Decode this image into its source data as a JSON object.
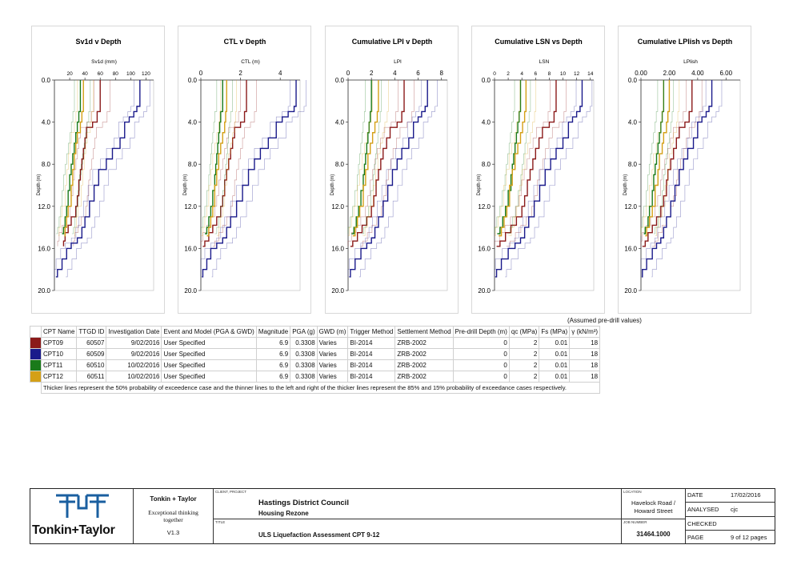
{
  "charts": [
    {
      "title": "Sv1d v Depth",
      "xlabel": "Sv1d (mm)",
      "ylabel": "Depth (m)",
      "xticks": [
        "20",
        "40",
        "60",
        "80",
        "100",
        "120"
      ],
      "yticks": [
        "0.0",
        "4.0",
        "8.0",
        "12.0",
        "16.0",
        "20.0"
      ]
    },
    {
      "title": "CTL v Depth",
      "xlabel": "CTL (m)",
      "ylabel": "Depth (m)",
      "xticks": [
        "0",
        "2",
        "4"
      ],
      "yticks": [
        "0.0",
        "4.0",
        "8.0",
        "12.0",
        "16.0",
        "20.0"
      ]
    },
    {
      "title": "Cumulative LPI v Depth",
      "xlabel": "LPI",
      "ylabel": "Depth (m)",
      "xticks": [
        "0",
        "2",
        "4",
        "6",
        "8"
      ],
      "yticks": [
        "0.0",
        "4.0",
        "8.0",
        "12.0",
        "16.0",
        "20.0"
      ]
    },
    {
      "title": "Cumulative LSN vs Depth",
      "xlabel": "LSN",
      "ylabel": "Depth (m)",
      "xticks": [
        "0",
        "2",
        "4",
        "6",
        "8",
        "10",
        "12",
        "14"
      ],
      "yticks": [
        "0.0",
        "4.0",
        "8.0",
        "12.0",
        "16.0",
        "20.0"
      ]
    },
    {
      "title": "Cumulative LPlish vs Depth",
      "xlabel": "LPlish",
      "ylabel": "Depth (m)",
      "xticks": [
        "0.00",
        "2.00",
        "4.00",
        "6.00"
      ],
      "yticks": [
        "0.0",
        "4.0",
        "8.0",
        "12.0",
        "16.0",
        "20.0"
      ]
    }
  ],
  "chart_data": [
    {
      "type": "line",
      "title": "Sv1d v Depth",
      "xlabel": "Sv1d (mm)",
      "ylabel": "Depth (m)",
      "xlim": [
        0,
        130
      ],
      "ylim": [
        0,
        20
      ],
      "series": [
        {
          "name": "CPT09",
          "color": "#8b1a1a",
          "x": [
            60,
            60,
            56,
            50,
            42,
            40,
            38,
            36,
            34,
            32,
            30,
            28,
            22,
            18,
            14,
            12,
            12
          ],
          "y": [
            0,
            1.5,
            3.0,
            4.0,
            4.5,
            5.5,
            6.5,
            7.5,
            8.5,
            9.5,
            11.0,
            12.0,
            13.0,
            13.8,
            14.5,
            15.3,
            15.8
          ]
        },
        {
          "name": "CPT10",
          "color": "#1a1a8b",
          "x": [
            112,
            112,
            108,
            104,
            98,
            92,
            86,
            76,
            68,
            58,
            52,
            46,
            40,
            36,
            30,
            22,
            16,
            10,
            4,
            2
          ],
          "y": [
            0,
            1.5,
            2.5,
            3.0,
            3.5,
            4.0,
            5.5,
            6.5,
            7.5,
            8.5,
            10.0,
            11.5,
            13.0,
            14.0,
            15.0,
            15.5,
            16.0,
            17.0,
            18.0,
            18.7
          ]
        },
        {
          "name": "CPT11",
          "color": "#1a7a1a",
          "x": [
            34,
            34,
            32,
            30,
            28,
            26,
            24,
            22,
            20,
            18,
            16,
            14,
            12,
            10
          ],
          "y": [
            0,
            1.5,
            3.0,
            4.0,
            5.0,
            6.0,
            7.0,
            8.0,
            9.0,
            10.5,
            12.0,
            13.0,
            14.0,
            14.6
          ]
        },
        {
          "name": "CPT12",
          "color": "#d4a017",
          "x": [
            38,
            38,
            36,
            34,
            30,
            28,
            26,
            24,
            22,
            18,
            16,
            14,
            13
          ],
          "y": [
            0,
            1.5,
            3.0,
            4.0,
            5.0,
            6.0,
            7.0,
            8.5,
            10.0,
            12.0,
            13.0,
            14.0,
            14.8
          ]
        }
      ]
    },
    {
      "type": "line",
      "title": "CTL v Depth",
      "xlabel": "CTL (m)",
      "ylabel": "Depth (m)",
      "xlim": [
        0,
        5
      ],
      "ylim": [
        0,
        20
      ],
      "series": [
        {
          "name": "CPT09",
          "color": "#8b1a1a",
          "x": [
            2.3,
            2.3,
            2.2,
            2.0,
            1.7,
            1.6,
            1.5,
            1.4,
            1.3,
            1.2,
            1.1,
            1.0,
            0.8,
            0.6,
            0.4,
            0.2,
            0.1
          ],
          "y": [
            0,
            1.5,
            3.0,
            4.0,
            4.5,
            5.5,
            6.5,
            7.5,
            8.5,
            9.5,
            11.0,
            12.0,
            13.0,
            13.8,
            14.5,
            15.3,
            15.8
          ]
        },
        {
          "name": "CPT10",
          "color": "#1a1a8b",
          "x": [
            4.8,
            4.8,
            4.7,
            4.4,
            4.1,
            3.8,
            3.4,
            3.0,
            2.7,
            2.4,
            2.1,
            1.8,
            1.5,
            1.3,
            1.1,
            0.8,
            0.5,
            0.3,
            0.1,
            0.05
          ],
          "y": [
            0,
            1.5,
            2.5,
            3.0,
            3.5,
            4.0,
            5.5,
            6.5,
            7.5,
            8.5,
            10.0,
            11.5,
            13.0,
            14.0,
            15.0,
            15.5,
            16.0,
            17.0,
            18.0,
            18.7
          ]
        },
        {
          "name": "CPT11",
          "color": "#1a7a1a",
          "x": [
            1.1,
            1.1,
            1.0,
            0.95,
            0.9,
            0.85,
            0.8,
            0.75,
            0.7,
            0.6,
            0.5,
            0.4,
            0.3,
            0.2
          ],
          "y": [
            0,
            1.5,
            3.0,
            4.0,
            5.0,
            6.0,
            7.0,
            8.0,
            9.0,
            10.5,
            12.0,
            13.0,
            14.0,
            14.6
          ]
        },
        {
          "name": "CPT12",
          "color": "#d4a017",
          "x": [
            1.3,
            1.3,
            1.25,
            1.2,
            1.1,
            1.0,
            0.9,
            0.8,
            0.7,
            0.6,
            0.5,
            0.4,
            0.3
          ],
          "y": [
            0,
            1.5,
            3.0,
            4.0,
            5.0,
            6.0,
            7.0,
            8.5,
            10.0,
            12.0,
            13.0,
            14.0,
            14.8
          ]
        }
      ]
    },
    {
      "type": "line",
      "title": "Cumulative LPI v Depth",
      "xlabel": "LPI",
      "ylabel": "Depth (m)",
      "xlim": [
        0,
        8.5
      ],
      "ylim": [
        0,
        20
      ],
      "series": [
        {
          "name": "CPT09",
          "color": "#8b1a1a",
          "x": [
            4.8,
            4.8,
            4.6,
            4.2,
            3.6,
            3.3,
            3.0,
            2.8,
            2.6,
            2.4,
            2.2,
            2.0,
            1.6,
            1.2,
            0.8,
            0.4,
            0.2
          ],
          "y": [
            0,
            1.5,
            3.0,
            4.0,
            4.5,
            5.5,
            6.5,
            7.5,
            8.5,
            9.5,
            11.0,
            12.0,
            13.0,
            13.8,
            14.5,
            15.3,
            15.8
          ]
        },
        {
          "name": "CPT10",
          "color": "#1a1a8b",
          "x": [
            6.8,
            6.8,
            6.6,
            6.3,
            6.0,
            5.6,
            5.2,
            4.6,
            4.2,
            3.8,
            3.4,
            3.0,
            2.6,
            2.3,
            2.0,
            1.6,
            1.1,
            0.6,
            0.2,
            0.1
          ],
          "y": [
            0,
            1.5,
            2.5,
            3.0,
            3.5,
            4.0,
            5.5,
            6.5,
            7.5,
            8.5,
            10.0,
            11.5,
            13.0,
            14.0,
            15.0,
            15.5,
            16.0,
            17.0,
            18.0,
            18.7
          ]
        },
        {
          "name": "CPT11",
          "color": "#1a7a1a",
          "x": [
            2.0,
            2.0,
            1.9,
            1.8,
            1.7,
            1.6,
            1.5,
            1.4,
            1.3,
            1.1,
            0.9,
            0.7,
            0.5,
            0.3
          ],
          "y": [
            0,
            1.5,
            3.0,
            4.0,
            5.0,
            6.0,
            7.0,
            8.0,
            9.0,
            10.5,
            12.0,
            13.0,
            14.0,
            14.6
          ]
        },
        {
          "name": "CPT12",
          "color": "#d4a017",
          "x": [
            2.6,
            2.6,
            2.5,
            2.3,
            2.1,
            1.9,
            1.7,
            1.5,
            1.3,
            1.0,
            0.8,
            0.6,
            0.4
          ],
          "y": [
            0,
            1.5,
            3.0,
            4.0,
            5.0,
            6.0,
            7.0,
            8.5,
            10.0,
            12.0,
            13.0,
            14.0,
            14.8
          ]
        }
      ]
    },
    {
      "type": "line",
      "title": "Cumulative LSN vs Depth",
      "xlabel": "LSN",
      "ylabel": "Depth (m)",
      "xlim": [
        0,
        14.5
      ],
      "ylim": [
        0,
        20
      ],
      "series": [
        {
          "name": "CPT09",
          "color": "#8b1a1a",
          "x": [
            9.0,
            9.0,
            8.7,
            8.0,
            7.0,
            6.5,
            6.0,
            5.6,
            5.2,
            4.8,
            4.4,
            4.0,
            3.2,
            2.4,
            1.6,
            0.8,
            0.3
          ],
          "y": [
            0,
            1.5,
            3.0,
            4.0,
            4.5,
            5.5,
            6.5,
            7.5,
            8.5,
            9.5,
            11.0,
            12.0,
            13.0,
            13.8,
            14.5,
            15.3,
            15.8
          ]
        },
        {
          "name": "CPT10",
          "color": "#1a1a8b",
          "x": [
            12.8,
            12.8,
            12.5,
            12.0,
            11.4,
            10.8,
            10.0,
            9.0,
            8.2,
            7.4,
            6.6,
            5.8,
            5.0,
            4.4,
            3.8,
            3.0,
            2.0,
            1.0,
            0.3,
            0.1
          ],
          "y": [
            0,
            1.5,
            2.5,
            3.0,
            3.5,
            4.0,
            5.5,
            6.5,
            7.5,
            8.5,
            10.0,
            11.5,
            13.0,
            14.0,
            15.0,
            15.5,
            16.0,
            17.0,
            18.0,
            18.7
          ]
        },
        {
          "name": "CPT11",
          "color": "#1a7a1a",
          "x": [
            3.8,
            3.8,
            3.6,
            3.4,
            3.2,
            3.0,
            2.8,
            2.6,
            2.4,
            2.0,
            1.6,
            1.2,
            0.8,
            0.4
          ],
          "y": [
            0,
            1.5,
            3.0,
            4.0,
            5.0,
            6.0,
            7.0,
            8.0,
            9.0,
            10.5,
            12.0,
            13.0,
            14.0,
            14.6
          ]
        },
        {
          "name": "CPT12",
          "color": "#d4a017",
          "x": [
            4.6,
            4.6,
            4.4,
            4.1,
            3.8,
            3.4,
            3.0,
            2.6,
            2.2,
            1.8,
            1.4,
            1.0,
            0.6
          ],
          "y": [
            0,
            1.5,
            3.0,
            4.0,
            5.0,
            6.0,
            7.0,
            8.5,
            10.0,
            12.0,
            13.0,
            14.0,
            14.8
          ]
        }
      ]
    },
    {
      "type": "line",
      "title": "Cumulative LPlish vs Depth",
      "xlabel": "LPlish",
      "ylabel": "Depth (m)",
      "xlim": [
        0,
        7
      ],
      "ylim": [
        0,
        20
      ],
      "series": [
        {
          "name": "CPT09",
          "color": "#8b1a1a",
          "x": [
            3.6,
            3.6,
            3.4,
            3.1,
            2.7,
            2.5,
            2.3,
            2.1,
            1.9,
            1.8,
            1.6,
            1.4,
            1.1,
            0.8,
            0.5,
            0.3,
            0.1
          ],
          "y": [
            0,
            1.5,
            3.0,
            4.0,
            4.5,
            5.5,
            6.5,
            7.5,
            8.5,
            9.5,
            11.0,
            12.0,
            13.0,
            13.8,
            14.5,
            15.3,
            15.8
          ]
        },
        {
          "name": "CPT10",
          "color": "#1a1a8b",
          "x": [
            5.0,
            5.0,
            4.8,
            4.6,
            4.3,
            4.0,
            3.7,
            3.3,
            3.0,
            2.7,
            2.4,
            2.1,
            1.8,
            1.6,
            1.4,
            1.1,
            0.8,
            0.4,
            0.1,
            0.05
          ],
          "y": [
            0,
            1.5,
            2.5,
            3.0,
            3.5,
            4.0,
            5.5,
            6.5,
            7.5,
            8.5,
            10.0,
            11.5,
            13.0,
            14.0,
            15.0,
            15.5,
            16.0,
            17.0,
            18.0,
            18.7
          ]
        },
        {
          "name": "CPT11",
          "color": "#1a7a1a",
          "x": [
            1.6,
            1.6,
            1.5,
            1.4,
            1.3,
            1.2,
            1.1,
            1.0,
            0.9,
            0.8,
            0.6,
            0.5,
            0.3,
            0.2
          ],
          "y": [
            0,
            1.5,
            3.0,
            4.0,
            5.0,
            6.0,
            7.0,
            8.0,
            9.0,
            10.5,
            12.0,
            13.0,
            14.0,
            14.6
          ]
        },
        {
          "name": "CPT12",
          "color": "#d4a017",
          "x": [
            2.0,
            2.0,
            1.9,
            1.8,
            1.6,
            1.5,
            1.3,
            1.2,
            1.0,
            0.8,
            0.6,
            0.4,
            0.3
          ],
          "y": [
            0,
            1.5,
            3.0,
            4.0,
            5.0,
            6.0,
            7.0,
            8.5,
            10.0,
            12.0,
            13.0,
            14.0,
            14.8
          ]
        }
      ]
    }
  ],
  "table": {
    "assumed_note": "(Assumed pre-drill values)",
    "headers": [
      "CPT Name",
      "TTGD ID",
      "Investigation Date",
      "Event and Model (PGA & GWD)",
      "Magnitude",
      "PGA (g)",
      "GWD (m)",
      "Trigger Method",
      "Settlement Method",
      "Pre-drill Depth (m)",
      "qc (MPa)",
      "Fs (MPa)",
      "γ (kN/m³)"
    ],
    "rows": [
      {
        "color": "#8b1a1a",
        "cells": [
          "CPT09",
          "60507",
          "9/02/2016",
          "User Specified",
          "6.9",
          "0.3308",
          "Varies",
          "BI-2014",
          "ZRB-2002",
          "0",
          "2",
          "0.01",
          "18"
        ]
      },
      {
        "color": "#1a1a8b",
        "cells": [
          "CPT10",
          "60509",
          "9/02/2016",
          "User Specified",
          "6.9",
          "0.3308",
          "Varies",
          "BI-2014",
          "ZRB-2002",
          "0",
          "2",
          "0.01",
          "18"
        ]
      },
      {
        "color": "#1a7a1a",
        "cells": [
          "CPT11",
          "60510",
          "10/02/2016",
          "User Specified",
          "6.9",
          "0.3308",
          "Varies",
          "BI-2014",
          "ZRB-2002",
          "0",
          "2",
          "0.01",
          "18"
        ]
      },
      {
        "color": "#d4a017",
        "cells": [
          "CPT12",
          "60511",
          "10/02/2016",
          "User Specified",
          "6.9",
          "0.3308",
          "Varies",
          "BI-2014",
          "ZRB-2002",
          "0",
          "2",
          "0.01",
          "18"
        ]
      }
    ],
    "footnote": "Thicker lines represent the 50% probability of exceedence case and the thinner lines to the left and right of the thicker lines represent the 85% and 15% probability of exceedance cases respectively."
  },
  "title_block": {
    "logo_text": "Tonkin+Taylor",
    "company": "Tonkin + Taylor",
    "tagline_1": "Exceptional thinking",
    "tagline_2": "together",
    "version": "V1.3",
    "client_label": "CLIENT, PROJECT",
    "client": "Hastings District Council",
    "project": "Housing Rezone",
    "title_label": "TITLE",
    "title": "ULS Liquefaction Assessment CPT 9-12",
    "location_label": "LOCATION",
    "location_1": "Havelock Road /",
    "location_2": "Howard Street",
    "job_label": "JOB NUMBER",
    "job_number": "31464.1000",
    "date_label": "DATE",
    "date": "17/02/2016",
    "analysed_label": "ANALYSED",
    "analysed": "cjc",
    "checked_label": "CHECKED",
    "checked": "",
    "page_label": "PAGE",
    "page": "9 of 12 pages"
  },
  "colors": {
    "cpt09": "#8b1a1a",
    "cpt10": "#1a1a8b",
    "cpt11": "#1a7a1a",
    "cpt12": "#d4a017",
    "logo": "#1a5fa0"
  }
}
